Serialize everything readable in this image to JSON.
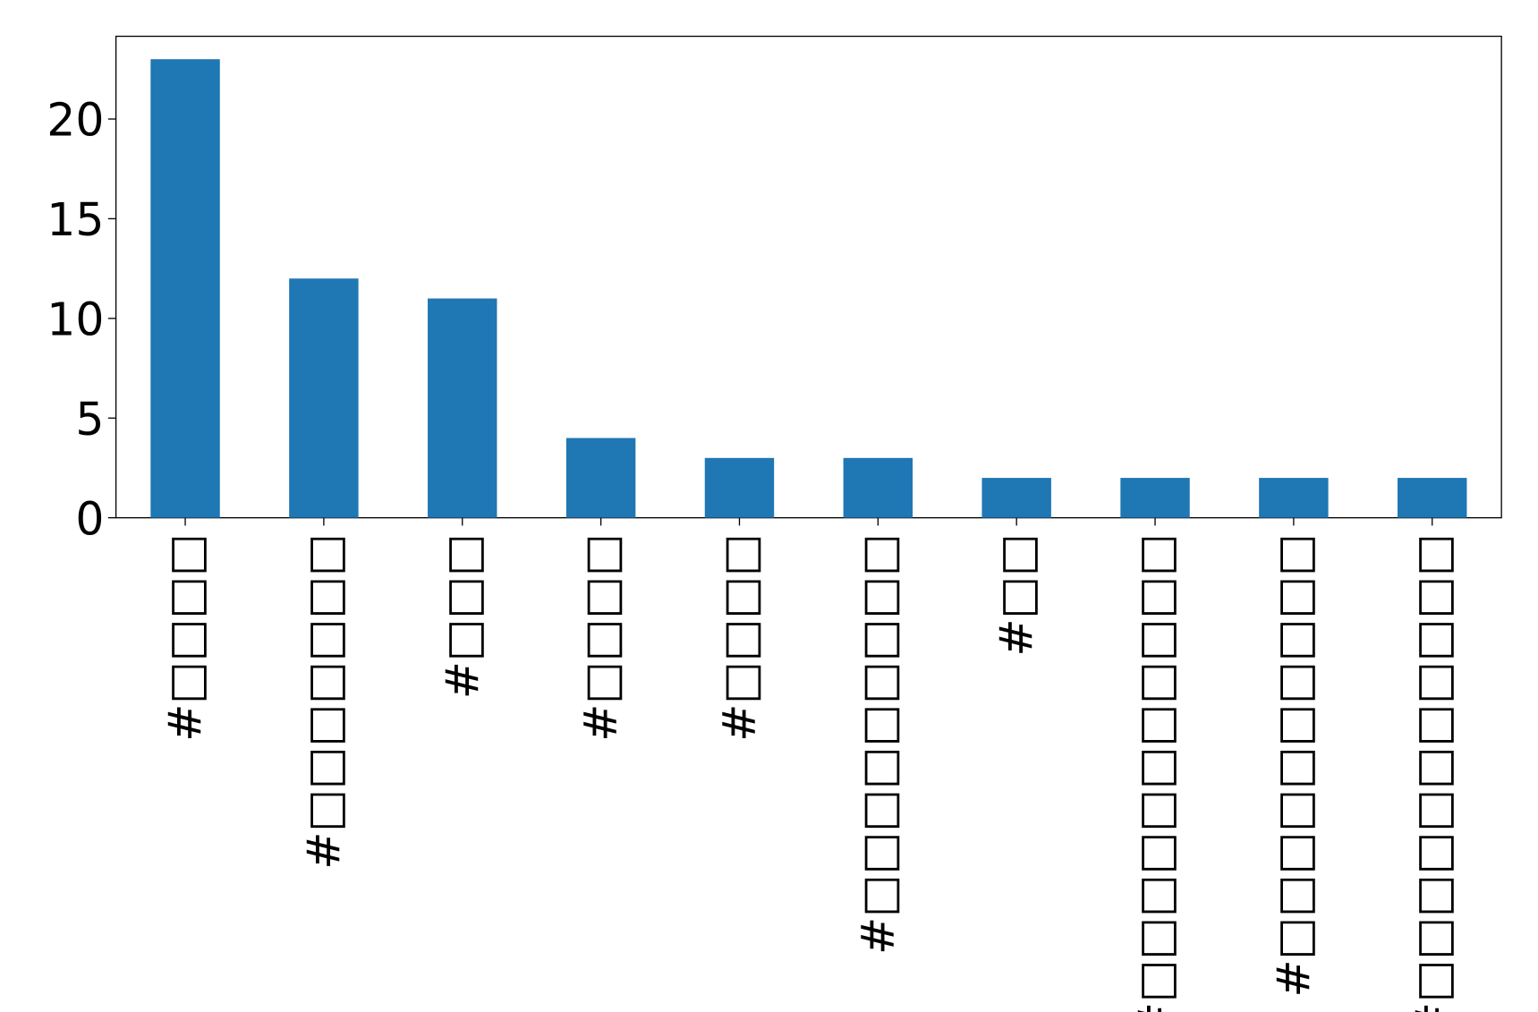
{
  "chart_data": {
    "type": "bar",
    "categories": [
      "#□□□□",
      "#□□□□□□□",
      "#□□□",
      "#□□□□",
      "#□□□□",
      "#□□□□□□□□□",
      "#□□",
      "#□□□□□□□□□□□",
      "#□□□□□□□□□□",
      "#□□□□□□□□□□□"
    ],
    "values": [
      23,
      12,
      11,
      4,
      3,
      3,
      2,
      2,
      2,
      2
    ],
    "color": "#1f77b4",
    "ylim": [
      0,
      24.15
    ],
    "yticks": [
      0,
      5,
      10,
      15,
      20
    ]
  }
}
